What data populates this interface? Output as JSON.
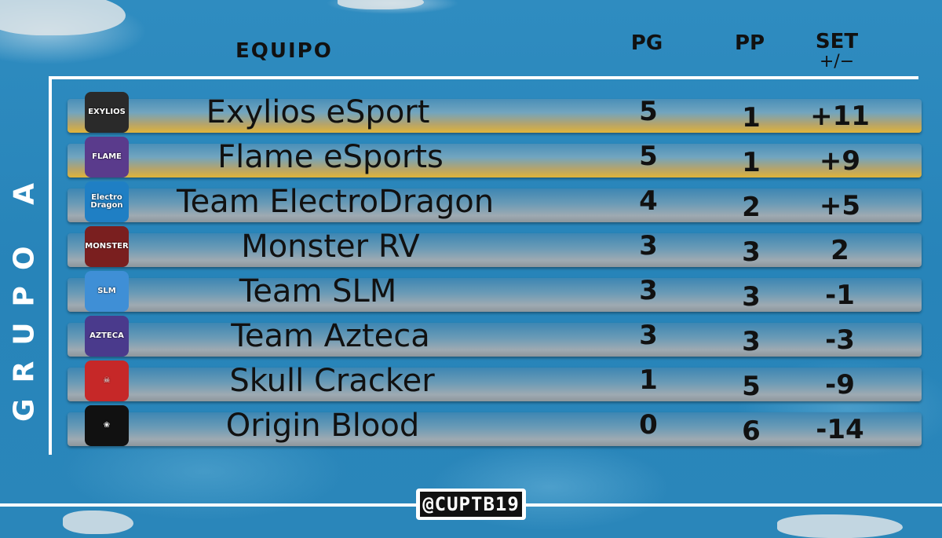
{
  "group": "GRUPO A",
  "headers": {
    "team": "EQUIPO",
    "pg": "PG",
    "pp": "PP",
    "set": "SET",
    "set_sub": "+/−"
  },
  "teams": [
    {
      "name": "Exylios eSport",
      "pg": "5",
      "pp": "1",
      "set": "+11",
      "style": "gold",
      "logo_icon": "exylios-logo-icon",
      "logo_color": "#2a2a2a",
      "logo_text": "EXYLIOS"
    },
    {
      "name": "Flame eSports",
      "pg": "5",
      "pp": "1",
      "set": "+9",
      "style": "gold",
      "logo_icon": "flame-logo-icon",
      "logo_color": "#5a3b8c",
      "logo_text": "FLAME"
    },
    {
      "name": "Team ElectroDragon",
      "pg": "4",
      "pp": "2",
      "set": "+5",
      "style": "grey",
      "logo_icon": "electrodragon-logo-icon",
      "logo_color": "#1f7fc4",
      "logo_text": "Electro Dragon"
    },
    {
      "name": "Monster RV",
      "pg": "3",
      "pp": "3",
      "set": "2",
      "style": "grey",
      "logo_icon": "monster-logo-icon",
      "logo_color": "#7a1f1f",
      "logo_text": "MONSTER"
    },
    {
      "name": "Team SLM",
      "pg": "3",
      "pp": "3",
      "set": "-1",
      "style": "grey",
      "logo_icon": "slm-logo-icon",
      "logo_color": "#3f8fd6",
      "logo_text": "SLM"
    },
    {
      "name": "Team Azteca",
      "pg": "3",
      "pp": "3",
      "set": "-3",
      "style": "grey",
      "logo_icon": "azteca-logo-icon",
      "logo_color": "#4a3a8c",
      "logo_text": "AZTECA"
    },
    {
      "name": "Skull Cracker",
      "pg": "1",
      "pp": "5",
      "set": "-9",
      "style": "grey",
      "logo_icon": "skull-logo-icon",
      "logo_color": "#c62828",
      "logo_text": "☠"
    },
    {
      "name": "Origin Blood",
      "pg": "0",
      "pp": "6",
      "set": "-14",
      "style": "grey",
      "logo_icon": "originblood-logo-icon",
      "logo_color": "#111111",
      "logo_text": "❀"
    }
  ],
  "handle": "@CUPTB19",
  "colors": {
    "background": "#2b86b8",
    "gold": "#e0b43a",
    "frame": "#ffffff"
  }
}
